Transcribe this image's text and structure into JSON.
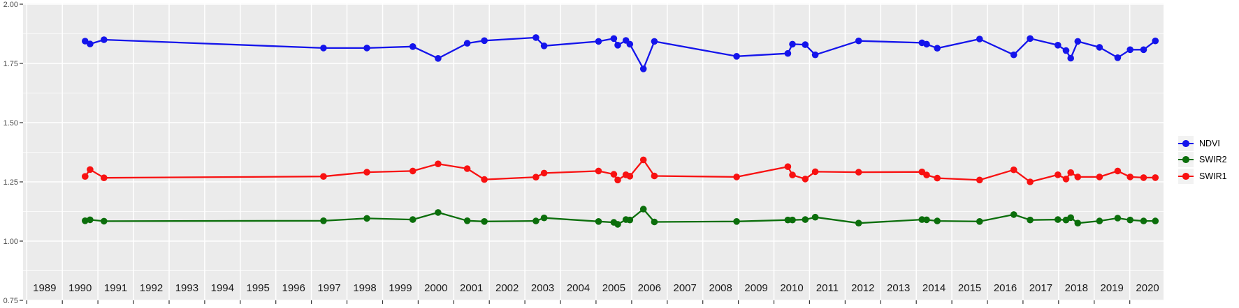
{
  "chart_data": {
    "type": "line",
    "title": "",
    "xlabel": "",
    "ylabel": "",
    "legend_position": "right",
    "grid": true,
    "xlim": [
      1988.896,
      2020.949
    ],
    "ylim": [
      0.75,
      2.0029
    ],
    "x_tick_years": [
      1989,
      1990,
      1991,
      1992,
      1993,
      1994,
      1995,
      1996,
      1997,
      1998,
      1999,
      2000,
      2001,
      2002,
      2003,
      2004,
      2005,
      2006,
      2007,
      2008,
      2009,
      2010,
      2011,
      2012,
      2013,
      2014,
      2015,
      2016,
      2017,
      2018,
      2019,
      2020
    ],
    "y_ticks": [
      2.0,
      1.75,
      1.5,
      1.25,
      1.0,
      0.75
    ],
    "y_tick_labels": [
      "2.00",
      "1.75",
      "1.50",
      "1.25",
      "1.00",
      "0.75"
    ],
    "x": [
      1990.64,
      1990.78,
      1991.17,
      1997.34,
      1998.56,
      1999.85,
      2000.56,
      2001.38,
      2001.86,
      2003.31,
      2003.54,
      2005.07,
      2005.5,
      2005.61,
      2005.84,
      2005.95,
      2006.33,
      2006.64,
      2008.95,
      2010.39,
      2010.52,
      2010.88,
      2011.16,
      2012.38,
      2014.16,
      2014.29,
      2014.59,
      2015.78,
      2016.74,
      2017.2,
      2017.98,
      2018.21,
      2018.34,
      2018.54,
      2019.15,
      2019.66,
      2020.01,
      2020.39,
      2020.72
    ],
    "series": [
      {
        "name": "NDVI",
        "color": "#1414eb",
        "values": [
          1.844,
          1.832,
          1.85,
          1.815,
          1.815,
          1.821,
          1.771,
          1.835,
          1.846,
          1.859,
          1.824,
          1.843,
          1.855,
          1.827,
          1.847,
          1.831,
          1.727,
          1.843,
          1.78,
          1.792,
          1.831,
          1.829,
          1.786,
          1.845,
          1.837,
          1.831,
          1.814,
          1.853,
          1.786,
          1.855,
          1.827,
          1.804,
          1.772,
          1.843,
          1.818,
          1.774,
          1.808,
          1.808,
          1.845
        ]
      },
      {
        "name": "SWIR2",
        "color": "#0b6e0b",
        "values": [
          1.086,
          1.09,
          1.084,
          1.086,
          1.096,
          1.091,
          1.121,
          1.086,
          1.083,
          1.085,
          1.098,
          1.083,
          1.079,
          1.071,
          1.091,
          1.089,
          1.135,
          1.081,
          1.083,
          1.089,
          1.089,
          1.091,
          1.101,
          1.076,
          1.091,
          1.09,
          1.085,
          1.083,
          1.112,
          1.089,
          1.091,
          1.089,
          1.099,
          1.076,
          1.085,
          1.097,
          1.089,
          1.085,
          1.085
        ]
      },
      {
        "name": "SWIR1",
        "color": "#f81111",
        "values": [
          1.273,
          1.302,
          1.267,
          1.273,
          1.291,
          1.296,
          1.326,
          1.306,
          1.26,
          1.27,
          1.287,
          1.296,
          1.282,
          1.258,
          1.28,
          1.274,
          1.343,
          1.275,
          1.271,
          1.314,
          1.279,
          1.262,
          1.293,
          1.291,
          1.292,
          1.279,
          1.266,
          1.258,
          1.301,
          1.25,
          1.28,
          1.262,
          1.289,
          1.271,
          1.271,
          1.296,
          1.271,
          1.268,
          1.268
        ]
      }
    ]
  },
  "style": {
    "panel_bg": "#ebebeb",
    "grid_color": "#ffffff",
    "tick_color": "#333333",
    "y_tick_label_color": "#4d4d4d",
    "x_tick_label_color": "#1a1a1a",
    "legend_key_bg": "#f2f2f2"
  }
}
